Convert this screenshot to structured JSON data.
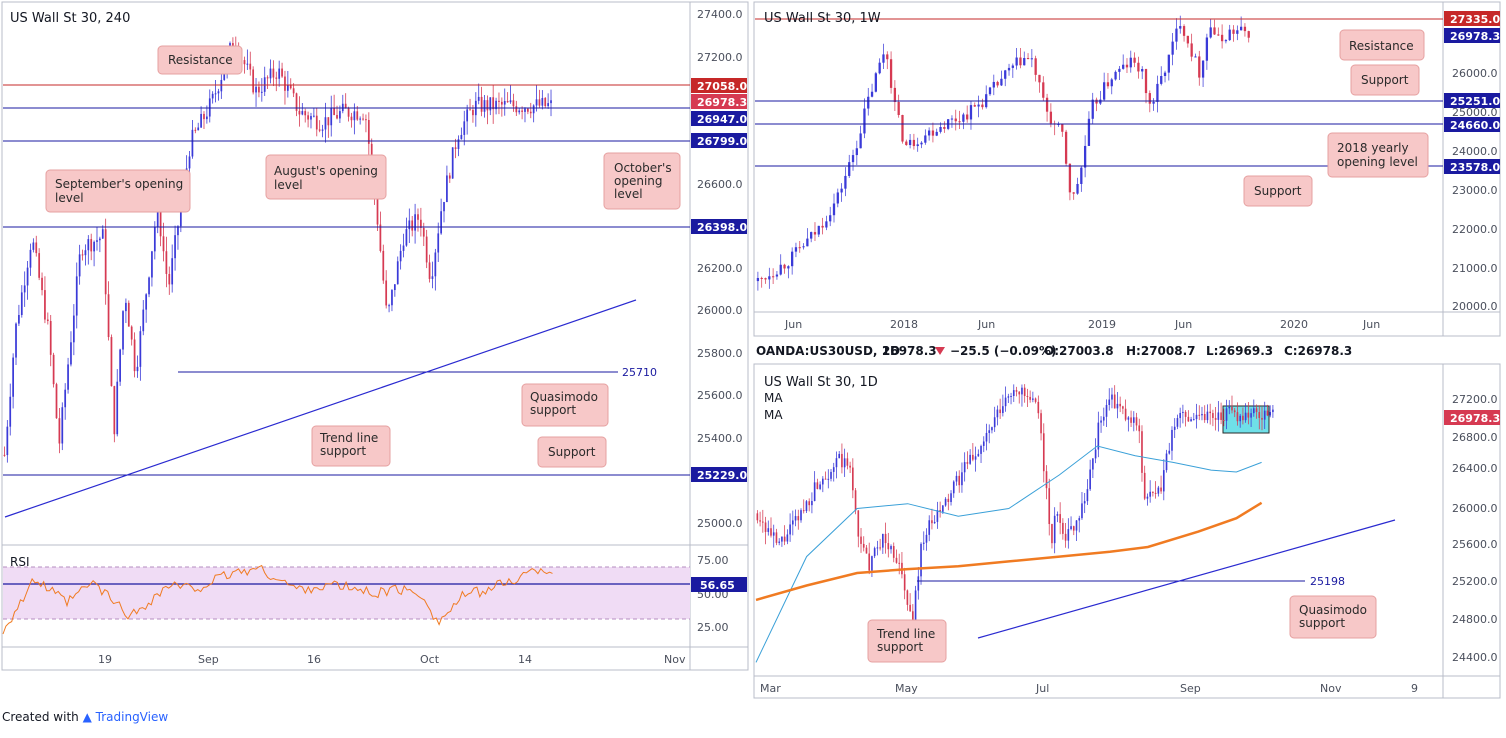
{
  "colors": {
    "up": "#3a3ad8",
    "down": "#d63a52",
    "resistance": "#c62828",
    "level": "#1a1aa0",
    "callout_fill": "#f7c8c8",
    "callout_stroke": "#e6a0a0",
    "rsi_line": "#f07b22",
    "rsi_band": "#f0dcf5",
    "ma_fast": "#3aa0d8",
    "ma_slow": "#f07b22",
    "zone": "#6fe0e8"
  },
  "panels": {
    "h4": {
      "title": "US Wall St 30, 240",
      "x_ticks": [
        "19",
        "Sep",
        "16",
        "Oct",
        "14",
        "Nov"
      ],
      "y_ticks": [
        "27400.0",
        "27200.0",
        "26600.0",
        "26200.0",
        "26000.0",
        "25800.0",
        "25600.0",
        "25400.0",
        "25000.0"
      ],
      "price_tags": [
        {
          "label": "27058.0",
          "kind": "resistance"
        },
        {
          "label": "26978.3",
          "kind": "current"
        },
        {
          "label": "26947.0",
          "kind": "level"
        },
        {
          "label": "26799.0",
          "kind": "level"
        },
        {
          "label": "26398.0",
          "kind": "level"
        },
        {
          "label": "25229.0",
          "kind": "level"
        }
      ],
      "qm_label": "25710",
      "callouts": {
        "resistance": "Resistance",
        "august": "August's opening level",
        "september": "September's opening level",
        "october": "October's opening level",
        "quasimodo": "Quasimodo support",
        "trendline": "Trend line support",
        "support": "Support"
      },
      "rsi": {
        "label": "RSI",
        "value_tag": "56.65",
        "y_ticks": [
          "75.00",
          "50.00",
          "25.00"
        ]
      }
    },
    "weekly": {
      "title": "US Wall St 30, 1W",
      "x_ticks": [
        "Jun",
        "2018",
        "Jun",
        "2019",
        "Jun",
        "2020",
        "Jun"
      ],
      "y_ticks": [
        "26000.0",
        "25000.0",
        "24000.0",
        "23000.0",
        "22000.0",
        "21000.0",
        "20000.0"
      ],
      "price_tags": [
        {
          "label": "27335.0",
          "kind": "resistance"
        },
        {
          "label": "26978.3",
          "kind": "current"
        },
        {
          "label": "25251.0",
          "kind": "level"
        },
        {
          "label": "24660.0",
          "kind": "level"
        },
        {
          "label": "23578.0",
          "kind": "level"
        }
      ],
      "callouts": {
        "resistance": "Resistance",
        "support": "Support",
        "yearly": "2018 yearly opening level",
        "support2": "Support"
      }
    },
    "daily": {
      "header": {
        "symbol": "OANDA:US30USD, 1D",
        "price": "26978.3",
        "change": "−25.5 (−0.09%)",
        "o": "O:27003.8",
        "h": "H:27008.7",
        "l": "L:26969.3",
        "c": "C:26978.3"
      },
      "title": "US Wall St 30, 1D",
      "ma_labels": [
        "MA",
        "MA"
      ],
      "x_ticks": [
        "Mar",
        "May",
        "Jul",
        "Sep",
        "Nov",
        "9"
      ],
      "y_ticks": [
        "27200.0",
        "26800.0",
        "26400.0",
        "26000.0",
        "25600.0",
        "25200.0",
        "24800.0",
        "24400.0"
      ],
      "price_tag": "26978.3",
      "qm_label": "25198",
      "callouts": {
        "trendline": "Trend line support",
        "quasimodo": "Quasimodo support"
      }
    }
  },
  "chart_data": [
    {
      "type": "candlestick",
      "title": "US Wall St 30, 240",
      "ylim": [
        24900,
        27450
      ],
      "levels": {
        "resistance": 27058.0,
        "supports": [
          26947.0,
          26799.0,
          26398.0,
          25229.0
        ],
        "quasimodo": 25710,
        "current": 26978.3
      },
      "trendline": {
        "start": [
          0,
          25050
        ],
        "end": [
          1,
          26040
        ]
      },
      "anchors": [
        [
          0,
          25300
        ],
        [
          0.02,
          25900
        ],
        [
          0.05,
          26350
        ],
        [
          0.08,
          25900
        ],
        [
          0.1,
          25350
        ],
        [
          0.14,
          26300
        ],
        [
          0.18,
          26350
        ],
        [
          0.2,
          25400
        ],
        [
          0.22,
          26100
        ],
        [
          0.24,
          25700
        ],
        [
          0.28,
          26500
        ],
        [
          0.3,
          26100
        ],
        [
          0.34,
          26800
        ],
        [
          0.38,
          27000
        ],
        [
          0.42,
          27300
        ],
        [
          0.46,
          27050
        ],
        [
          0.5,
          27150
        ],
        [
          0.54,
          26950
        ],
        [
          0.58,
          26900
        ],
        [
          0.62,
          26950
        ],
        [
          0.66,
          26950
        ],
        [
          0.68,
          26500
        ],
        [
          0.7,
          25950
        ],
        [
          0.73,
          26350
        ],
        [
          0.76,
          26450
        ],
        [
          0.78,
          26150
        ],
        [
          0.8,
          26500
        ],
        [
          0.83,
          26850
        ],
        [
          0.86,
          26980
        ]
      ],
      "rsi": {
        "ylim": [
          15,
          85
        ],
        "band": [
          30,
          70
        ],
        "level": 56.65,
        "anchors": [
          [
            0,
            25
          ],
          [
            0.05,
            62
          ],
          [
            0.1,
            45
          ],
          [
            0.14,
            60
          ],
          [
            0.2,
            35
          ],
          [
            0.26,
            58
          ],
          [
            0.3,
            55
          ],
          [
            0.36,
            67
          ],
          [
            0.4,
            70
          ],
          [
            0.46,
            55
          ],
          [
            0.52,
            58
          ],
          [
            0.58,
            52
          ],
          [
            0.62,
            55
          ],
          [
            0.66,
            50
          ],
          [
            0.68,
            30
          ],
          [
            0.72,
            50
          ],
          [
            0.76,
            55
          ],
          [
            0.8,
            62
          ],
          [
            0.84,
            70
          ],
          [
            0.86,
            68
          ]
        ]
      }
    },
    {
      "type": "candlestick",
      "title": "US Wall St 30, 1W",
      "ylim": [
        19800,
        27600
      ],
      "levels": {
        "resistance": 27335.0,
        "supports": [
          25251.0,
          24660.0,
          23578.0
        ],
        "current": 26978.3
      },
      "anchors": [
        [
          0,
          20500
        ],
        [
          0.06,
          21000
        ],
        [
          0.12,
          21800
        ],
        [
          0.16,
          22600
        ],
        [
          0.2,
          24000
        ],
        [
          0.22,
          25000
        ],
        [
          0.26,
          26600
        ],
        [
          0.28,
          25000
        ],
        [
          0.3,
          24000
        ],
        [
          0.34,
          24300
        ],
        [
          0.38,
          24600
        ],
        [
          0.42,
          24800
        ],
        [
          0.46,
          25200
        ],
        [
          0.5,
          25800
        ],
        [
          0.54,
          26300
        ],
        [
          0.56,
          26200
        ],
        [
          0.58,
          25200
        ],
        [
          0.6,
          24600
        ],
        [
          0.62,
          24300
        ],
        [
          0.64,
          22500
        ],
        [
          0.66,
          23500
        ],
        [
          0.68,
          25000
        ],
        [
          0.72,
          25800
        ],
        [
          0.76,
          26200
        ],
        [
          0.78,
          26000
        ],
        [
          0.8,
          25000
        ],
        [
          0.84,
          26400
        ],
        [
          0.86,
          27300
        ],
        [
          0.88,
          26600
        ],
        [
          0.9,
          25900
        ],
        [
          0.92,
          27200
        ],
        [
          0.94,
          26700
        ],
        [
          0.96,
          26980
        ]
      ]
    },
    {
      "type": "candlestick",
      "title": "US Wall St 30, 1D",
      "ylim": [
        24300,
        27420
      ],
      "levels": {
        "quasimodo": 25198,
        "current": 26978.3
      },
      "trendline": {
        "start": [
          0.3,
          24590
        ],
        "end": [
          0.86,
          25860
        ]
      },
      "demand_zone": {
        "x": [
          0.63,
          0.7
        ],
        "y": [
          26780,
          27080
        ]
      },
      "anchors": [
        [
          0,
          25950
        ],
        [
          0.04,
          25600
        ],
        [
          0.08,
          25900
        ],
        [
          0.12,
          26300
        ],
        [
          0.16,
          26500
        ],
        [
          0.18,
          26400
        ],
        [
          0.2,
          25600
        ],
        [
          0.22,
          25400
        ],
        [
          0.24,
          25700
        ],
        [
          0.27,
          25500
        ],
        [
          0.3,
          24800
        ],
        [
          0.32,
          25700
        ],
        [
          0.36,
          26000
        ],
        [
          0.4,
          26400
        ],
        [
          0.44,
          26700
        ],
        [
          0.47,
          27000
        ],
        [
          0.5,
          27280
        ],
        [
          0.52,
          27150
        ],
        [
          0.54,
          27050
        ],
        [
          0.55,
          26800
        ],
        [
          0.57,
          25600
        ],
        [
          0.58,
          26000
        ],
        [
          0.6,
          25700
        ],
        [
          0.62,
          25900
        ],
        [
          0.64,
          26200
        ],
        [
          0.66,
          26800
        ],
        [
          0.68,
          27150
        ],
        [
          0.7,
          27050
        ],
        [
          0.72,
          26900
        ],
        [
          0.74,
          26900
        ],
        [
          0.75,
          26100
        ],
        [
          0.78,
          26150
        ],
        [
          0.8,
          26700
        ],
        [
          0.82,
          26980
        ]
      ],
      "ma_fast": [
        [
          0.0,
          24400
        ],
        [
          0.08,
          25500
        ],
        [
          0.16,
          26000
        ],
        [
          0.24,
          26050
        ],
        [
          0.32,
          25920
        ],
        [
          0.4,
          26000
        ],
        [
          0.48,
          26350
        ],
        [
          0.54,
          26650
        ],
        [
          0.6,
          26550
        ],
        [
          0.66,
          26480
        ],
        [
          0.72,
          26400
        ],
        [
          0.76,
          26380
        ],
        [
          0.8,
          26480
        ]
      ],
      "ma_slow": [
        [
          0.0,
          25050
        ],
        [
          0.08,
          25200
        ],
        [
          0.16,
          25330
        ],
        [
          0.24,
          25370
        ],
        [
          0.32,
          25400
        ],
        [
          0.4,
          25450
        ],
        [
          0.48,
          25500
        ],
        [
          0.56,
          25550
        ],
        [
          0.62,
          25600
        ],
        [
          0.7,
          25760
        ],
        [
          0.76,
          25900
        ],
        [
          0.8,
          26060
        ]
      ]
    }
  ],
  "footer": {
    "prefix": "Created with",
    "brand": "TradingView"
  }
}
